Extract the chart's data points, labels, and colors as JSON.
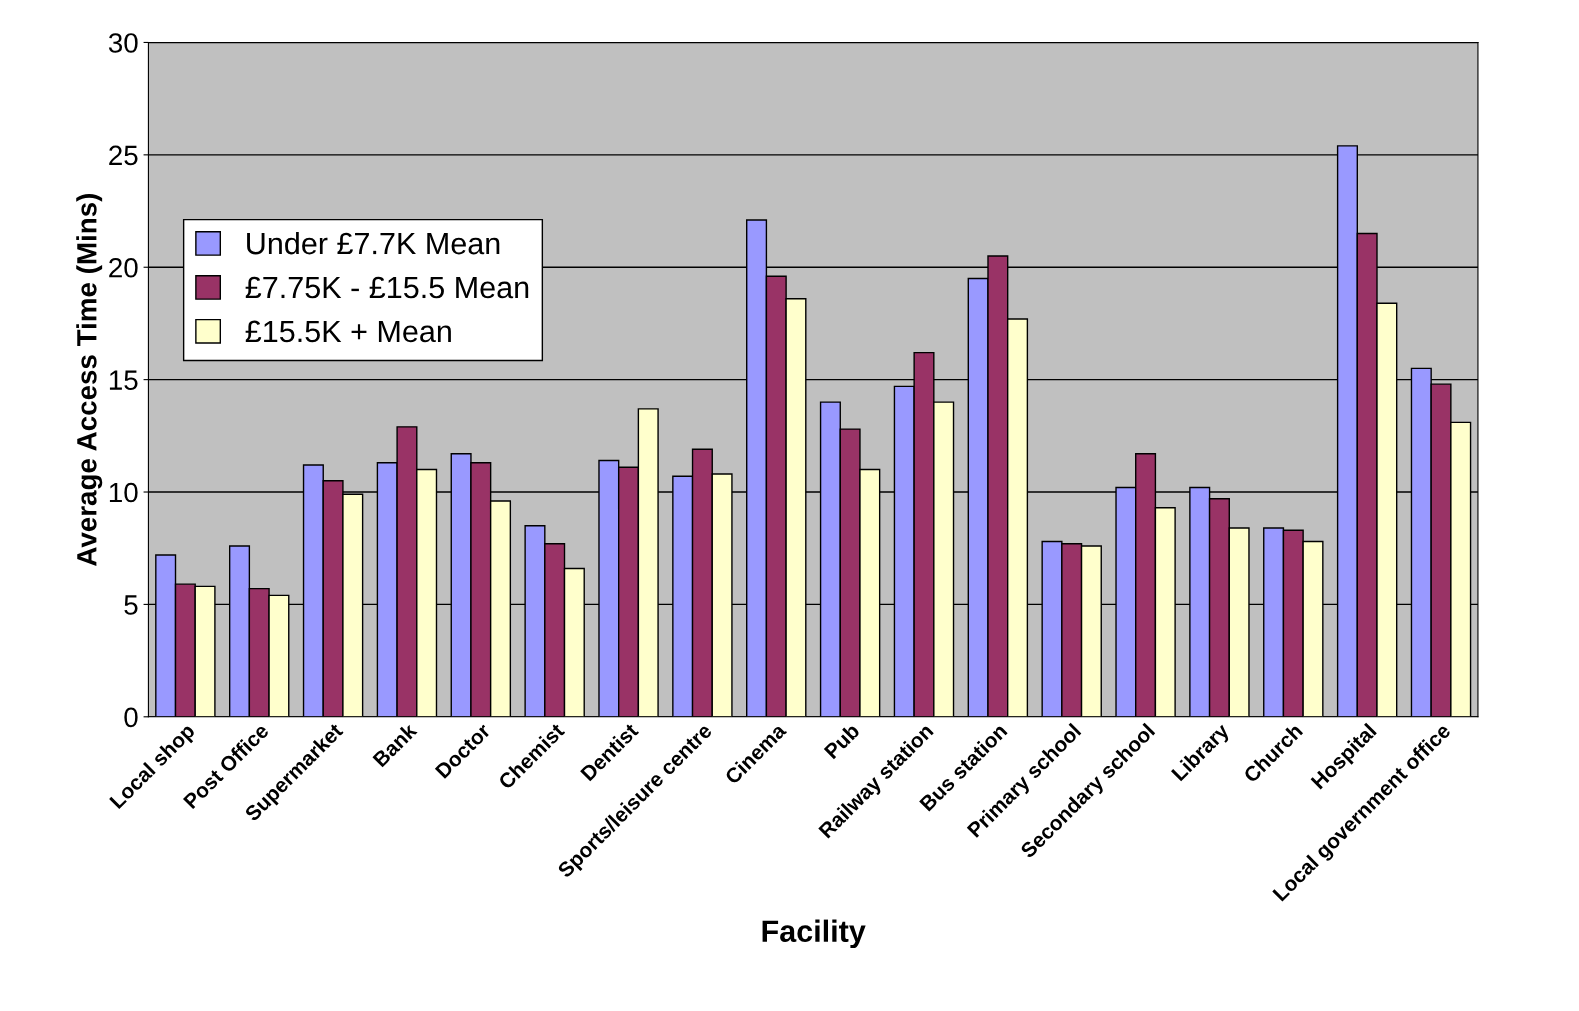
{
  "chart_data": {
    "type": "bar",
    "xlabel": "Facility",
    "ylabel": "Average Access Time (Mins)",
    "categories": [
      "Local shop",
      "Post Office",
      "Supermarket",
      "Bank",
      "Doctor",
      "Chemist",
      "Dentist",
      "Sports/leisure centre",
      "Cinema",
      "Pub",
      "Railway station",
      "Bus station",
      "Primary school",
      "Secondary school",
      "Library",
      "Church",
      "Hospital",
      "Local government office"
    ],
    "series": [
      {
        "name": "Under £7.7K Mean",
        "color": "#9999ff",
        "values": [
          7.2,
          7.6,
          11.2,
          11.3,
          11.7,
          8.5,
          11.4,
          10.7,
          22.1,
          14.0,
          14.7,
          19.5,
          7.8,
          10.2,
          10.2,
          8.4,
          25.4,
          15.5
        ]
      },
      {
        "name": "£7.75K - £15.5 Mean",
        "color": "#993366",
        "values": [
          5.9,
          5.7,
          10.5,
          12.9,
          11.3,
          7.7,
          11.1,
          11.9,
          19.6,
          12.8,
          16.2,
          20.5,
          7.7,
          11.7,
          9.7,
          8.3,
          21.5,
          14.8
        ]
      },
      {
        "name": "£15.5K + Mean",
        "color": "#ffffcc",
        "values": [
          5.8,
          5.4,
          9.9,
          11.0,
          9.6,
          6.6,
          13.7,
          10.8,
          18.6,
          11.0,
          14.0,
          17.7,
          7.6,
          9.3,
          8.4,
          7.8,
          18.4,
          13.1
        ]
      }
    ],
    "ylim": [
      0,
      30
    ],
    "yticks": [
      0,
      5,
      10,
      15,
      20,
      25,
      30
    ],
    "grid": "y",
    "legend": "top left"
  }
}
